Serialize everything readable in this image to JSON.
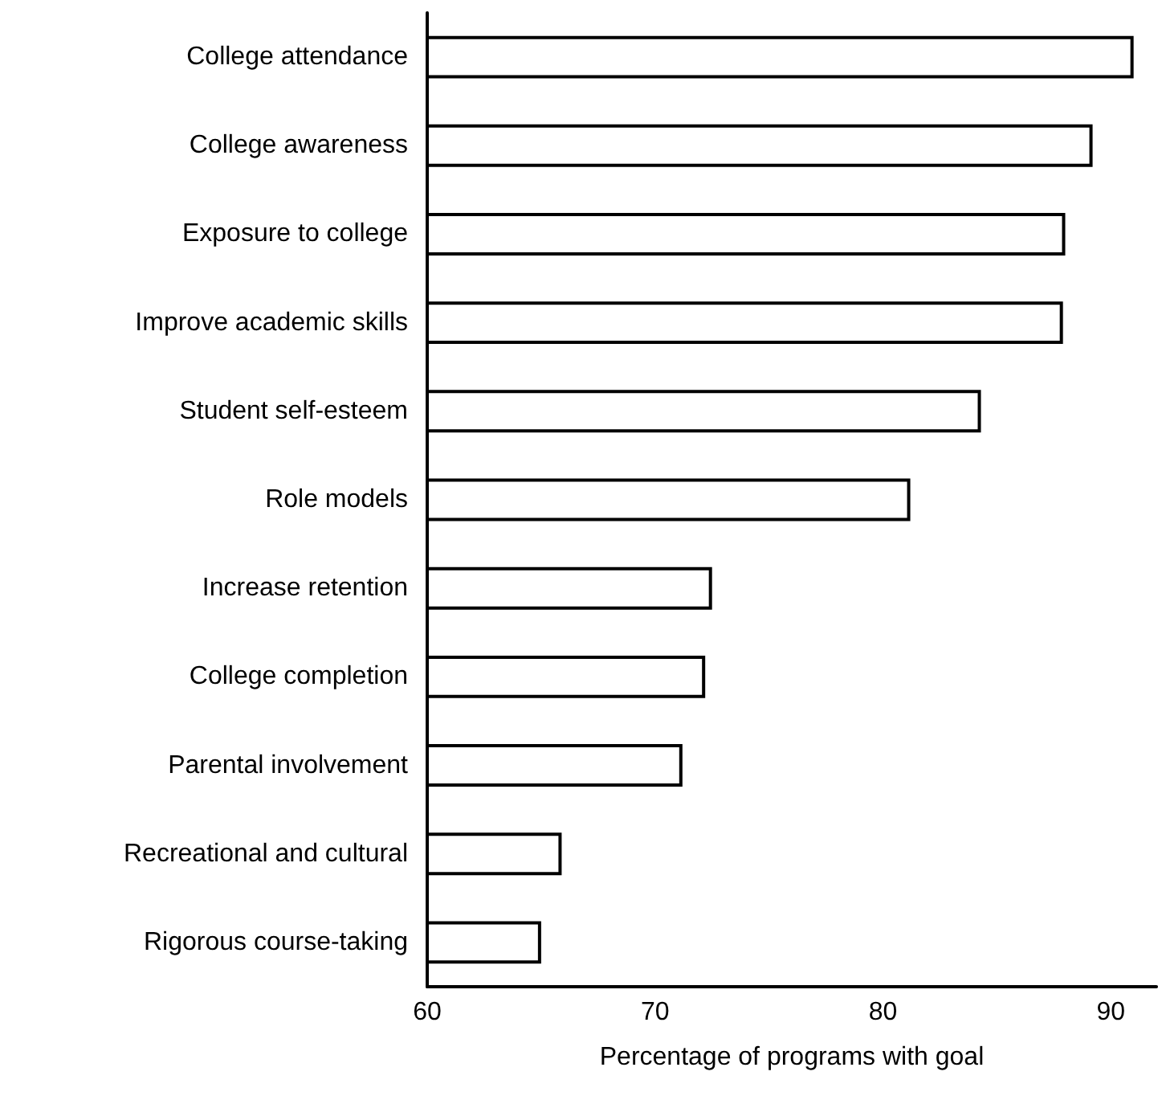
{
  "chart_data": {
    "type": "bar",
    "orientation": "horizontal",
    "xlabel": "Percentage of programs with goal",
    "categories": [
      "College attendance",
      "College awareness",
      "Exposure to college",
      "Improve academic skills",
      "Student self-esteem",
      "Role models",
      "Increase retention",
      "College completion",
      "Parental involvement",
      "Recreational and cultural",
      "Rigorous course-taking"
    ],
    "values": [
      91.0,
      89.2,
      88.0,
      87.9,
      84.3,
      81.2,
      72.5,
      72.2,
      71.2,
      65.9,
      65.0
    ],
    "color": "#ffffff",
    "xlim": [
      60,
      92
    ],
    "xticks": [
      60,
      70,
      80,
      90
    ],
    "grid": false
  }
}
